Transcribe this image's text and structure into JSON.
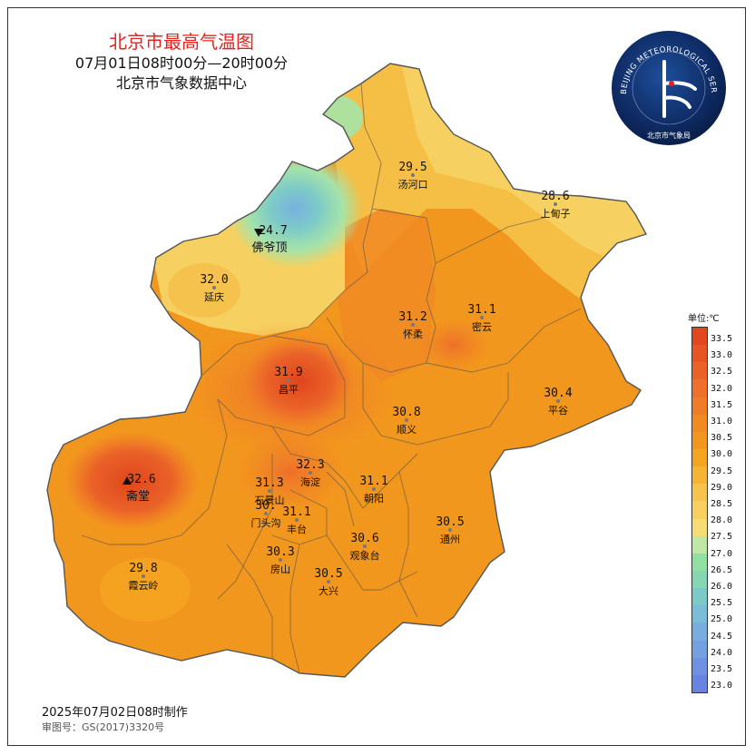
{
  "header": {
    "title": "北京市最高气温图",
    "period": "07月01日08时00分—20时00分",
    "source": "北京市气象数据中心"
  },
  "logo": {
    "ring_text": "BEIJING METEOROLOGICAL SERVICE",
    "name": "北京市气象局"
  },
  "footer": {
    "made": "2025年07月02日08时制作",
    "review": "审图号：GS(2017)3320号"
  },
  "legend": {
    "unit": "单位:℃",
    "ticks": [
      "33.5",
      "33.0",
      "32.5",
      "32.0",
      "31.5",
      "31.0",
      "30.5",
      "30.0",
      "29.5",
      "29.0",
      "28.5",
      "28.0",
      "27.5",
      "27.0",
      "26.5",
      "26.0",
      "25.5",
      "25.0",
      "24.5",
      "24.0",
      "23.5",
      "23.0"
    ],
    "colors": [
      "#e3471f",
      "#e75525",
      "#ea6228",
      "#ee702a",
      "#ef7d28",
      "#f08a22",
      "#f2971d",
      "#f4a520",
      "#f5b434",
      "#f6c34c",
      "#f7d060",
      "#f6dc72",
      "#bfe8a4",
      "#92dfa4",
      "#86d6b4",
      "#7ccac8",
      "#79bdd6",
      "#77aedd",
      "#73a0e0",
      "#6e92e1",
      "#6984e0"
    ]
  },
  "stations": [
    {
      "id": "tanghekou",
      "value": "29.5",
      "name": "汤河口"
    },
    {
      "id": "shangdianzi",
      "value": "28.6",
      "name": "上甸子"
    },
    {
      "id": "foyeding",
      "value": "24.7",
      "name": "佛爷顶",
      "marker": "min"
    },
    {
      "id": "yanqing",
      "value": "32.0",
      "name": "延庆"
    },
    {
      "id": "huairou",
      "value": "31.2",
      "name": "怀柔"
    },
    {
      "id": "miyun",
      "value": "31.1",
      "name": "密云"
    },
    {
      "id": "changping",
      "value": "31.9",
      "name": "昌平"
    },
    {
      "id": "pinggu",
      "value": "30.4",
      "name": "平谷"
    },
    {
      "id": "shunyi",
      "value": "30.8",
      "name": "顺义"
    },
    {
      "id": "zhaitang",
      "value": "32.6",
      "name": "斋堂",
      "marker": "max"
    },
    {
      "id": "haidian",
      "value": "32.3",
      "name": "海淀"
    },
    {
      "id": "shijingshan",
      "value": "31.3",
      "name": "石景山"
    },
    {
      "id": "chaoyang",
      "value": "31.1",
      "name": "朝阳"
    },
    {
      "id": "mentougou",
      "value": "30.",
      "name": "门头沟"
    },
    {
      "id": "fengtai",
      "value": "31.1",
      "name": "丰台"
    },
    {
      "id": "tongzhou",
      "value": "30.5",
      "name": "通州"
    },
    {
      "id": "fangshan",
      "value": "30.3",
      "name": "房山"
    },
    {
      "id": "guanxiangtai",
      "value": "30.6",
      "name": "观象台"
    },
    {
      "id": "daxing",
      "value": "30.5",
      "name": "大兴"
    },
    {
      "id": "xiayunling",
      "value": "29.8",
      "name": "霞云岭"
    }
  ]
}
